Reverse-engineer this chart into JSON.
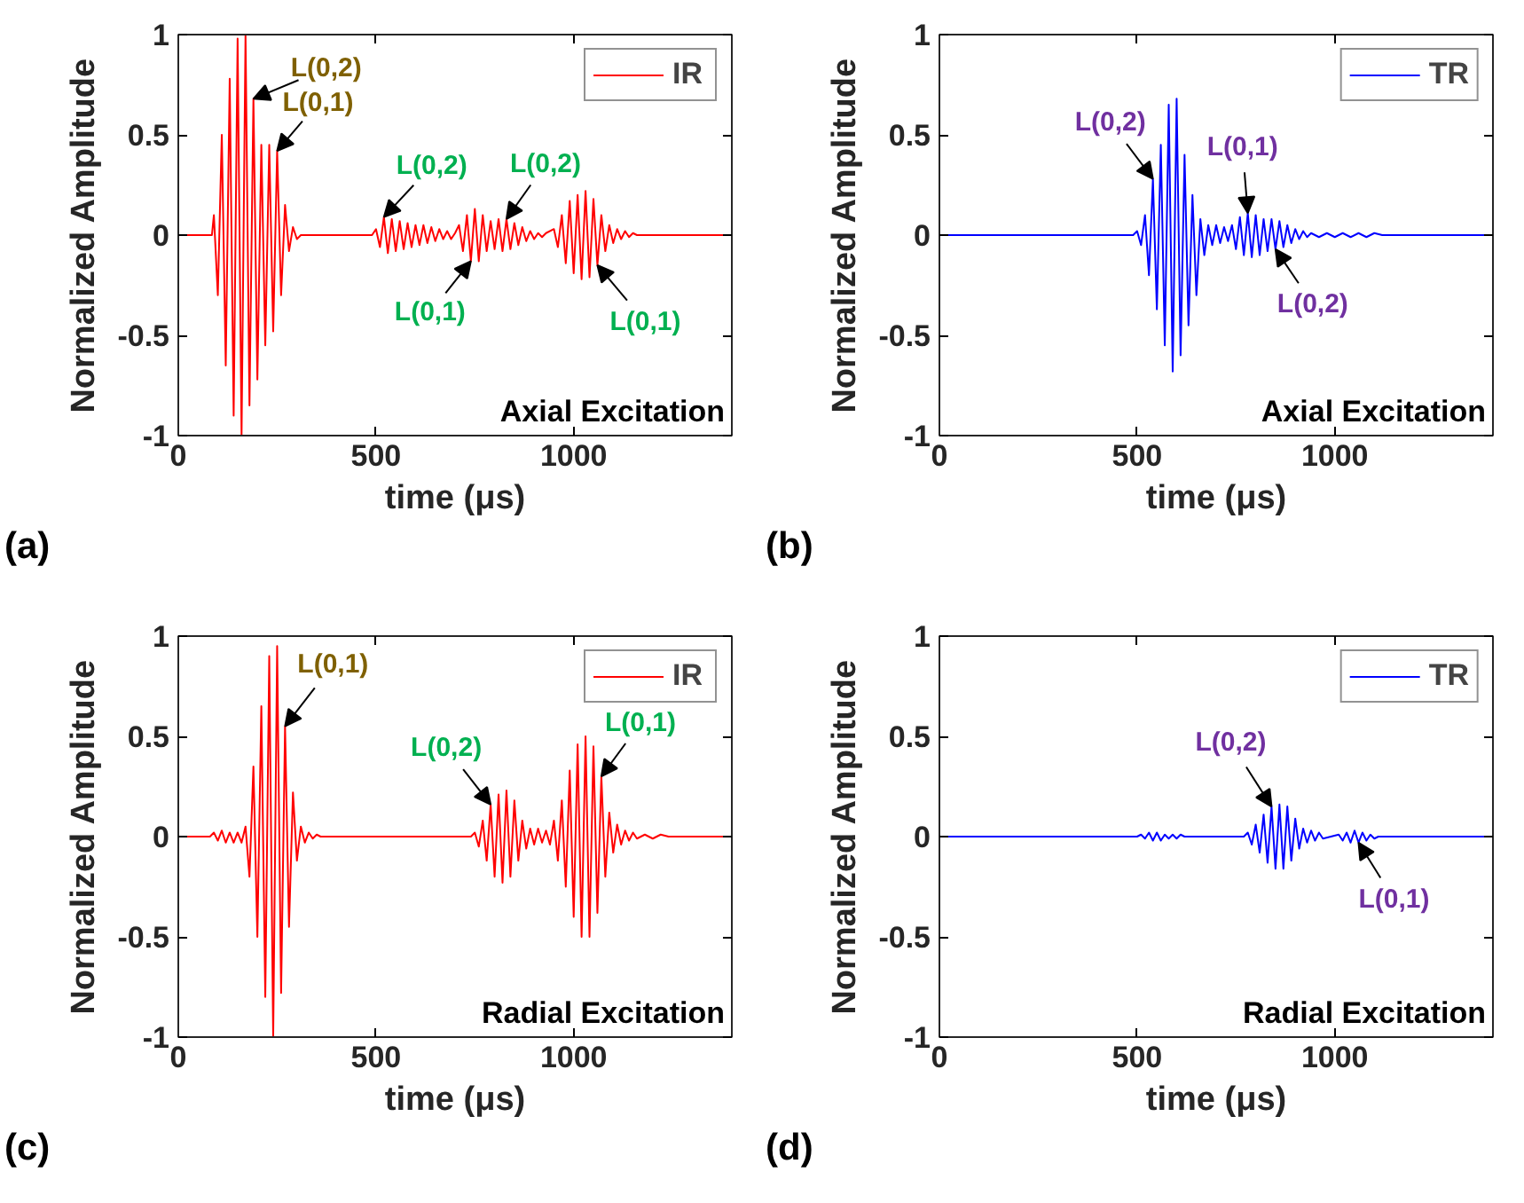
{
  "chart_data": [
    {
      "type": "line",
      "xlabel": "time (μs)",
      "ylabel": "Normalized Amplitude",
      "xlim": [
        0,
        1400
      ],
      "xticks": [
        0,
        500,
        1000
      ],
      "ylim": [
        -1,
        1
      ],
      "yticks": [
        -1,
        -0.5,
        0,
        0.5,
        1
      ],
      "legend": "top right",
      "grid": false,
      "series": [
        {
          "name": "IR",
          "color": "#ff0000",
          "x": [
            0,
            85,
            90,
            100,
            110,
            120,
            130,
            140,
            150,
            160,
            170,
            180,
            190,
            200,
            210,
            220,
            230,
            240,
            250,
            260,
            270,
            280,
            290,
            300,
            310,
            490,
            500,
            510,
            520,
            530,
            540,
            550,
            560,
            570,
            580,
            590,
            600,
            610,
            620,
            630,
            640,
            650,
            660,
            670,
            680,
            690,
            700,
            710,
            720,
            730,
            740,
            750,
            760,
            770,
            780,
            790,
            800,
            810,
            820,
            830,
            840,
            850,
            860,
            870,
            880,
            890,
            900,
            910,
            920,
            930,
            950,
            960,
            970,
            980,
            990,
            1000,
            1010,
            1020,
            1030,
            1040,
            1050,
            1060,
            1070,
            1080,
            1090,
            1100,
            1110,
            1120,
            1130,
            1140,
            1150,
            1160,
            1400
          ],
          "values": [
            0,
            0,
            0.1,
            -0.3,
            0.5,
            -0.65,
            0.78,
            -0.9,
            0.98,
            -1,
            1,
            -0.85,
            0.68,
            -0.72,
            0.45,
            -0.55,
            0.45,
            -0.48,
            0.42,
            -0.3,
            0.15,
            -0.08,
            0.04,
            -0.02,
            0,
            0,
            0.03,
            -0.06,
            0.09,
            -0.09,
            0.08,
            -0.08,
            0.07,
            -0.07,
            0.06,
            -0.06,
            0.05,
            -0.05,
            0.05,
            -0.04,
            0.04,
            -0.03,
            0.03,
            -0.02,
            0.02,
            -0.02,
            0.01,
            0.05,
            -0.08,
            0.1,
            -0.13,
            0.13,
            -0.13,
            0.1,
            -0.08,
            0.07,
            -0.07,
            0.08,
            -0.08,
            0.08,
            -0.07,
            0.06,
            -0.05,
            0.04,
            -0.03,
            0.02,
            -0.02,
            0.01,
            -0.01,
            0.01,
            0.03,
            -0.06,
            0.1,
            -0.14,
            0.17,
            -0.19,
            0.2,
            -0.22,
            0.22,
            -0.21,
            0.18,
            -0.15,
            0.1,
            -0.08,
            0.05,
            -0.04,
            0.03,
            -0.02,
            0.02,
            -0.01,
            0.01,
            0,
            0
          ]
        }
      ],
      "annotations": [
        {
          "text": "L(0,2)",
          "x": 190,
          "y": 0.68
        },
        {
          "text": "L(0,1)",
          "x": 250,
          "y": 0.42
        },
        {
          "text": "L(0,2)",
          "x": 520,
          "y": 0.09
        },
        {
          "text": "L(0,1)",
          "x": 740,
          "y": -0.13
        },
        {
          "text": "L(0,2)",
          "x": 830,
          "y": 0.08
        },
        {
          "text": "L(0,1)",
          "x": 1060,
          "y": -0.15
        },
        "Axial Excitation",
        "(a)"
      ]
    },
    {
      "type": "line",
      "xlabel": "time (μs)",
      "ylabel": "Normalized Amplitude",
      "xlim": [
        0,
        1400
      ],
      "xticks": [
        0,
        500,
        1000
      ],
      "ylim": [
        -1,
        1
      ],
      "yticks": [
        -1,
        -0.5,
        0,
        0.5,
        1
      ],
      "legend": "top right",
      "grid": false,
      "series": [
        {
          "name": "TR",
          "color": "#0000ff",
          "x": [
            0,
            490,
            500,
            510,
            520,
            530,
            540,
            550,
            560,
            570,
            580,
            590,
            600,
            610,
            620,
            630,
            640,
            650,
            660,
            670,
            680,
            690,
            700,
            710,
            720,
            730,
            740,
            750,
            760,
            770,
            780,
            790,
            800,
            810,
            820,
            830,
            840,
            850,
            860,
            870,
            880,
            890,
            900,
            910,
            920,
            930,
            940,
            960,
            980,
            1000,
            1020,
            1040,
            1060,
            1080,
            1100,
            1120,
            1400
          ],
          "values": [
            0,
            0,
            0.02,
            -0.05,
            0.1,
            -0.2,
            0.28,
            -0.37,
            0.45,
            -0.55,
            0.65,
            -0.68,
            0.68,
            -0.6,
            0.4,
            -0.45,
            0.2,
            -0.3,
            0.08,
            -0.1,
            0.05,
            -0.05,
            0.05,
            -0.04,
            0.04,
            -0.03,
            0.05,
            -0.07,
            0.09,
            -0.1,
            0.11,
            -0.11,
            0.1,
            -0.1,
            0.08,
            -0.08,
            0.08,
            -0.07,
            0.07,
            -0.06,
            0.05,
            -0.04,
            0.03,
            -0.02,
            0.02,
            -0.01,
            0.01,
            -0.01,
            0.01,
            -0.01,
            0.01,
            -0.01,
            0.01,
            -0.01,
            0.01,
            0,
            0
          ]
        }
      ],
      "annotations": [
        {
          "text": "L(0,2)",
          "x": 540,
          "y": 0.28
        },
        {
          "text": "L(0,1)",
          "x": 780,
          "y": 0.11
        },
        {
          "text": "L(0,2)",
          "x": 850,
          "y": -0.07
        },
        "Axial Excitation",
        "(b)"
      ]
    },
    {
      "type": "line",
      "xlabel": "time (μs)",
      "ylabel": "Normalized Amplitude",
      "xlim": [
        0,
        1400
      ],
      "xticks": [
        0,
        500,
        1000
      ],
      "ylim": [
        -1,
        1
      ],
      "yticks": [
        -1,
        -0.5,
        0,
        0.5,
        1
      ],
      "legend": "top right",
      "grid": false,
      "series": [
        {
          "name": "IR",
          "color": "#ff0000",
          "x": [
            0,
            80,
            90,
            100,
            110,
            120,
            130,
            140,
            150,
            160,
            170,
            180,
            190,
            200,
            210,
            220,
            230,
            240,
            250,
            260,
            270,
            280,
            290,
            300,
            310,
            320,
            330,
            340,
            350,
            360,
            740,
            750,
            760,
            770,
            780,
            790,
            800,
            810,
            820,
            830,
            840,
            850,
            860,
            870,
            880,
            890,
            900,
            910,
            920,
            930,
            940,
            950,
            960,
            970,
            980,
            990,
            1000,
            1010,
            1020,
            1030,
            1040,
            1050,
            1060,
            1070,
            1080,
            1090,
            1100,
            1110,
            1120,
            1130,
            1140,
            1150,
            1160,
            1180,
            1200,
            1220,
            1240,
            1400
          ],
          "values": [
            0,
            0,
            0.02,
            -0.02,
            0.03,
            -0.03,
            0.02,
            -0.03,
            0.02,
            -0.03,
            0.05,
            -0.2,
            0.35,
            -0.5,
            0.65,
            -0.8,
            0.9,
            -1,
            0.95,
            -0.78,
            0.55,
            -0.45,
            0.22,
            -0.12,
            0.05,
            -0.03,
            0.02,
            -0.01,
            0.01,
            0,
            0,
            0.02,
            -0.05,
            0.08,
            -0.12,
            0.16,
            -0.2,
            0.21,
            -0.23,
            0.23,
            -0.2,
            0.18,
            -0.12,
            0.08,
            -0.06,
            0.04,
            -0.04,
            0.04,
            -0.03,
            0.03,
            -0.04,
            0.08,
            -0.12,
            0.18,
            -0.25,
            0.33,
            -0.4,
            0.46,
            -0.5,
            0.5,
            -0.5,
            0.45,
            -0.38,
            0.3,
            -0.2,
            0.12,
            -0.08,
            0.06,
            -0.04,
            0.03,
            -0.02,
            0.02,
            -0.01,
            0.01,
            -0.01,
            0.01,
            0,
            0
          ]
        }
      ],
      "annotations": [
        {
          "text": "L(0,1)",
          "x": 270,
          "y": 0.55
        },
        {
          "text": "L(0,2)",
          "x": 790,
          "y": 0.16
        },
        {
          "text": "L(0,1)",
          "x": 1070,
          "y": 0.3
        },
        "Radial Excitation",
        "(c)"
      ]
    },
    {
      "type": "line",
      "xlabel": "time (μs)",
      "ylabel": "Normalized Amplitude",
      "xlim": [
        0,
        1400
      ],
      "xticks": [
        0,
        500,
        1000
      ],
      "ylim": [
        -1,
        1
      ],
      "yticks": [
        -1,
        -0.5,
        0,
        0.5,
        1
      ],
      "legend": "top right",
      "grid": false,
      "series": [
        {
          "name": "TR",
          "color": "#0000ff",
          "x": [
            0,
            500,
            510,
            520,
            530,
            540,
            550,
            560,
            570,
            580,
            590,
            600,
            610,
            620,
            770,
            780,
            790,
            800,
            810,
            820,
            830,
            840,
            850,
            860,
            870,
            880,
            890,
            900,
            910,
            920,
            930,
            940,
            950,
            960,
            970,
            1010,
            1020,
            1030,
            1040,
            1050,
            1060,
            1070,
            1080,
            1090,
            1100,
            1110,
            1400
          ],
          "values": [
            0,
            0,
            0.01,
            -0.01,
            0.02,
            -0.02,
            0.02,
            -0.02,
            0.01,
            -0.01,
            0.01,
            -0.01,
            0.01,
            0,
            0,
            0.02,
            -0.04,
            0.06,
            -0.08,
            0.11,
            -0.13,
            0.15,
            -0.16,
            0.16,
            -0.16,
            0.15,
            -0.12,
            0.09,
            -0.06,
            0.04,
            -0.03,
            0.03,
            -0.02,
            0.02,
            -0.01,
            0.01,
            -0.02,
            0.02,
            -0.03,
            0.03,
            -0.03,
            0.02,
            -0.02,
            0.01,
            -0.01,
            0,
            0
          ]
        }
      ],
      "annotations": [
        {
          "text": "L(0,2)",
          "x": 840,
          "y": 0.15
        },
        {
          "text": "L(0,1)",
          "x": 1060,
          "y": -0.03
        },
        "Radial Excitation",
        "(d)"
      ]
    }
  ]
}
